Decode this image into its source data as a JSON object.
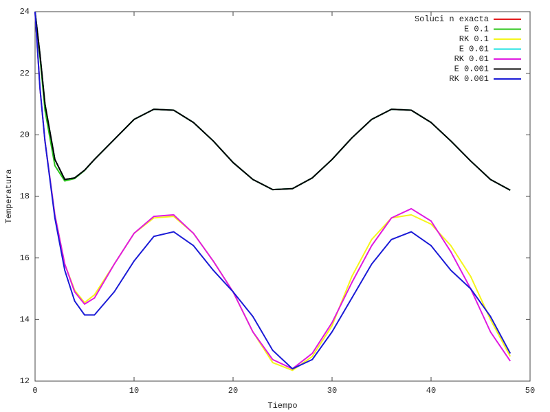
{
  "chart_data": {
    "type": "line",
    "x_label": "Tiempo",
    "y_label": "Temperatura",
    "x": [
      0,
      0.5,
      1,
      2,
      3,
      4,
      5,
      6,
      8,
      10,
      12,
      14,
      16,
      18,
      20,
      22,
      24,
      26,
      28,
      30,
      32,
      34,
      36,
      38,
      40,
      42,
      44,
      46,
      48
    ],
    "xlim": [
      0,
      50
    ],
    "xticks": [
      0,
      10,
      20,
      30,
      40,
      50
    ],
    "ylim": [
      12,
      24
    ],
    "yticks": [
      12,
      14,
      16,
      18,
      20,
      22,
      24
    ],
    "legend": "top-right",
    "grid": false,
    "series": [
      {
        "name": "Soluci n exacta",
        "color": "#e41a1c",
        "values": [
          24,
          22.6,
          21.0,
          19.2,
          18.55,
          18.6,
          18.85,
          19.2,
          19.85,
          20.5,
          20.83,
          20.8,
          20.4,
          19.8,
          19.1,
          18.55,
          18.22,
          18.25,
          18.6,
          19.2,
          19.9,
          20.5,
          20.83,
          20.8,
          20.4,
          19.8,
          19.15,
          18.55,
          18.2
        ]
      },
      {
        "name": "E 0.1",
        "color": "#2bc41a",
        "values": [
          24,
          22.5,
          20.8,
          19.0,
          18.5,
          18.58,
          18.84,
          19.2,
          19.85,
          20.5,
          20.83,
          20.8,
          20.4,
          19.8,
          19.1,
          18.55,
          18.22,
          18.25,
          18.6,
          19.2,
          19.9,
          20.5,
          20.83,
          20.8,
          20.4,
          19.8,
          19.15,
          18.55,
          18.2
        ]
      },
      {
        "name": "RK 0.1",
        "color": "#f5f51a",
        "values": [
          24,
          21.5,
          19.8,
          17.4,
          15.8,
          14.95,
          14.55,
          14.8,
          15.8,
          16.8,
          17.3,
          17.35,
          16.8,
          15.9,
          14.9,
          13.6,
          12.6,
          12.35,
          12.8,
          13.8,
          15.4,
          16.6,
          17.3,
          17.4,
          17.1,
          16.4,
          15.4,
          14.0,
          12.8
        ]
      },
      {
        "name": "E 0.01",
        "color": "#1ae0e0",
        "values": [
          24,
          22.6,
          21.0,
          19.2,
          18.55,
          18.6,
          18.85,
          19.2,
          19.85,
          20.5,
          20.83,
          20.8,
          20.4,
          19.8,
          19.1,
          18.55,
          18.22,
          18.25,
          18.6,
          19.2,
          19.9,
          20.5,
          20.83,
          20.8,
          20.4,
          19.8,
          19.15,
          18.55,
          18.2
        ]
      },
      {
        "name": "RK 0.01",
        "color": "#e01ae0",
        "values": [
          24,
          21.5,
          19.8,
          17.4,
          15.8,
          14.9,
          14.5,
          14.7,
          15.8,
          16.8,
          17.35,
          17.4,
          16.8,
          15.9,
          14.9,
          13.6,
          12.7,
          12.4,
          12.9,
          13.9,
          15.2,
          16.4,
          17.3,
          17.6,
          17.2,
          16.2,
          15.0,
          13.6,
          12.65
        ]
      },
      {
        "name": "E 0.001",
        "color": "#000000",
        "values": [
          24,
          22.6,
          21.0,
          19.2,
          18.55,
          18.6,
          18.85,
          19.2,
          19.85,
          20.5,
          20.83,
          20.8,
          20.4,
          19.8,
          19.1,
          18.55,
          18.22,
          18.25,
          18.6,
          19.2,
          19.9,
          20.5,
          20.83,
          20.8,
          20.4,
          19.8,
          19.15,
          18.55,
          18.2
        ]
      },
      {
        "name": "RK 0.001",
        "color": "#1a1ad6",
        "values": [
          24,
          21.5,
          19.8,
          17.3,
          15.6,
          14.6,
          14.15,
          14.15,
          14.9,
          15.9,
          16.7,
          16.85,
          16.4,
          15.6,
          14.9,
          14.1,
          13.0,
          12.4,
          12.7,
          13.6,
          14.7,
          15.8,
          16.6,
          16.85,
          16.4,
          15.6,
          15.0,
          14.1,
          12.9
        ]
      }
    ]
  }
}
